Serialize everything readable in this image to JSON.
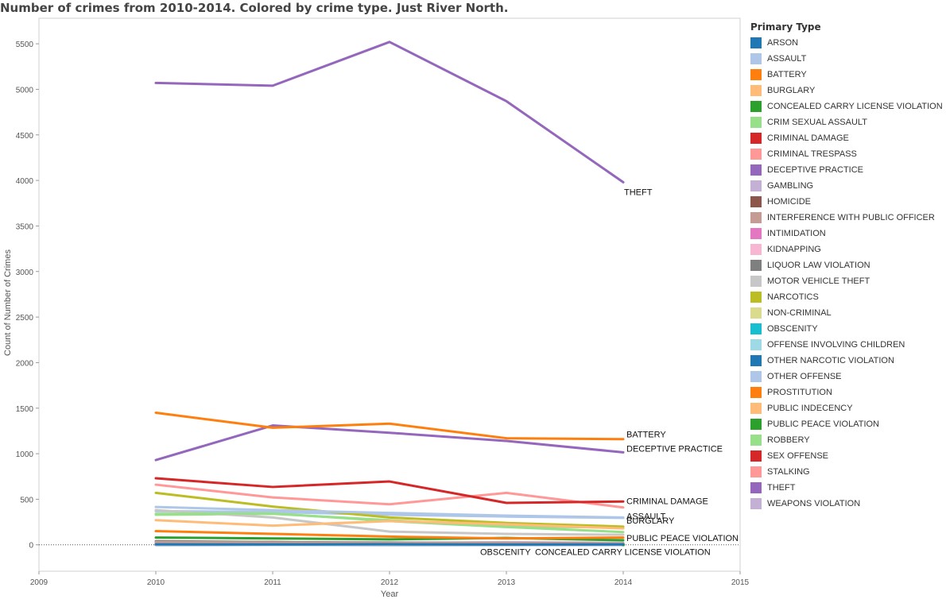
{
  "title": "Number of crimes from 2010-2014.  Colored by crime type.  Just River North.",
  "legend": {
    "title": "Primary Type"
  },
  "chart_data": {
    "type": "line",
    "title": "Number of crimes from 2010-2014.  Colored by crime type.  Just River North.",
    "xlabel": "Year",
    "ylabel": "Count of Number of Crimes",
    "xlim": [
      2009,
      2015
    ],
    "ylim": [
      -290,
      5780
    ],
    "x_ticks": [
      2009,
      2010,
      2011,
      2012,
      2013,
      2014,
      2015
    ],
    "y_ticks": [
      0,
      500,
      1000,
      1500,
      2000,
      2500,
      3000,
      3500,
      4000,
      4500,
      5000,
      5500
    ],
    "x": [
      2010,
      2011,
      2012,
      2013,
      2014
    ],
    "grid": false,
    "legend_position": "right",
    "series": [
      {
        "name": "ARSON",
        "color": "#1f77b4",
        "values": [
          5,
          4,
          6,
          3,
          4
        ]
      },
      {
        "name": "ASSAULT",
        "color": "#aec7e8",
        "values": [
          415,
          380,
          350,
          320,
          300
        ],
        "label": "ASSAULT"
      },
      {
        "name": "BATTERY",
        "color": "#ff7f0e",
        "values": [
          1450,
          1285,
          1330,
          1170,
          1160
        ],
        "label": "BATTERY"
      },
      {
        "name": "BURGLARY",
        "color": "#ffbb78",
        "values": [
          270,
          210,
          260,
          225,
          180
        ],
        "label": "BURGLARY"
      },
      {
        "name": "CONCEALED CARRY LICENSE VIOLATION",
        "color": "#2ca02c",
        "values": [
          null,
          null,
          null,
          null,
          1
        ],
        "label": "CONCEALED CARRY LICENSE VIOLATION"
      },
      {
        "name": "CRIM SEXUAL ASSAULT",
        "color": "#98df8a",
        "values": [
          340,
          345,
          260,
          195,
          140
        ]
      },
      {
        "name": "CRIMINAL DAMAGE",
        "color": "#d62728",
        "values": [
          730,
          635,
          695,
          460,
          475
        ],
        "label": "CRIMINAL DAMAGE"
      },
      {
        "name": "CRIMINAL TRESPASS",
        "color": "#ff9896",
        "values": [
          660,
          520,
          445,
          570,
          410
        ]
      },
      {
        "name": "DECEPTIVE PRACTICE",
        "color": "#9467bd",
        "values": [
          930,
          1310,
          1230,
          1140,
          1015
        ],
        "label": "DECEPTIVE PRACTICE"
      },
      {
        "name": "GAMBLING",
        "color": "#c5b0d5",
        "values": [
          2,
          1,
          2,
          1,
          0
        ]
      },
      {
        "name": "HOMICIDE",
        "color": "#8c564b",
        "values": [
          1,
          2,
          1,
          1,
          1
        ]
      },
      {
        "name": "INTERFERENCE WITH PUBLIC OFFICER",
        "color": "#c49c94",
        "values": [
          30,
          25,
          20,
          18,
          15
        ]
      },
      {
        "name": "INTIMIDATION",
        "color": "#e377c2",
        "values": [
          3,
          2,
          3,
          2,
          2
        ]
      },
      {
        "name": "KIDNAPPING",
        "color": "#f7b6d2",
        "values": [
          4,
          3,
          2,
          3,
          2
        ]
      },
      {
        "name": "LIQUOR LAW VIOLATION",
        "color": "#7f7f7f",
        "values": [
          40,
          30,
          25,
          20,
          15
        ]
      },
      {
        "name": "MOTOR VEHICLE THEFT",
        "color": "#c7c7c7",
        "values": [
          380,
          300,
          145,
          120,
          110
        ]
      },
      {
        "name": "NARCOTICS",
        "color": "#bcbd22",
        "values": [
          570,
          420,
          300,
          240,
          200
        ]
      },
      {
        "name": "NON-CRIMINAL",
        "color": "#dbdb8d",
        "values": [
          null,
          null,
          2,
          3,
          2
        ]
      },
      {
        "name": "OBSCENITY",
        "color": "#17becf",
        "values": [
          1,
          1,
          0,
          2,
          1
        ],
        "label": "OBSCENITY"
      },
      {
        "name": "OFFENSE INVOLVING CHILDREN",
        "color": "#9edae5",
        "values": [
          12,
          10,
          14,
          9,
          8
        ]
      },
      {
        "name": "OTHER NARCOTIC VIOLATION",
        "color": "#1f77b4",
        "values": [
          0,
          1,
          0,
          0,
          0
        ]
      },
      {
        "name": "OTHER OFFENSE",
        "color": "#aec7e8",
        "values": [
          370,
          360,
          330,
          310,
          295
        ]
      },
      {
        "name": "PROSTITUTION",
        "color": "#ff7f0e",
        "values": [
          150,
          120,
          90,
          70,
          80
        ]
      },
      {
        "name": "PUBLIC INDECENCY",
        "color": "#ffbb78",
        "values": [
          3,
          2,
          2,
          1,
          2
        ]
      },
      {
        "name": "PUBLIC PEACE VIOLATION",
        "color": "#2ca02c",
        "values": [
          80,
          70,
          60,
          75,
          50
        ],
        "label": "PUBLIC PEACE VIOLATION"
      },
      {
        "name": "ROBBERY",
        "color": "#98df8a",
        "values": [
          330,
          340,
          270,
          200,
          190
        ]
      },
      {
        "name": "SEX OFFENSE",
        "color": "#d62728",
        "values": [
          25,
          30,
          20,
          18,
          15
        ]
      },
      {
        "name": "STALKING",
        "color": "#ff9896",
        "values": [
          5,
          4,
          6,
          5,
          3
        ]
      },
      {
        "name": "THEFT",
        "color": "#9467bd",
        "values": [
          5070,
          5040,
          5520,
          4870,
          3980
        ],
        "label": "THEFT"
      },
      {
        "name": "WEAPONS VIOLATION",
        "color": "#c5b0d5",
        "values": [
          30,
          25,
          20,
          28,
          22
        ]
      }
    ]
  }
}
